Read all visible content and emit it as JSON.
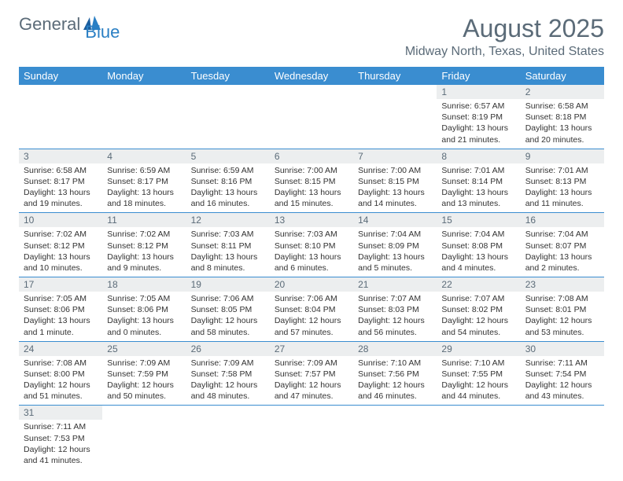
{
  "logo": {
    "text1": "General",
    "text2": "Blue"
  },
  "title": "August 2025",
  "location": "Midway North, Texas, United States",
  "colors": {
    "header_bg": "#3a8dd0",
    "header_text": "#ffffff",
    "daynum_bg": "#eceeef",
    "text_muted": "#5b6b78",
    "border": "#3a8dd0"
  },
  "daynames": [
    "Sunday",
    "Monday",
    "Tuesday",
    "Wednesday",
    "Thursday",
    "Friday",
    "Saturday"
  ],
  "weeks": [
    [
      null,
      null,
      null,
      null,
      null,
      {
        "n": "1",
        "sr": "Sunrise: 6:57 AM",
        "ss": "Sunset: 8:19 PM",
        "dl": "Daylight: 13 hours and 21 minutes."
      },
      {
        "n": "2",
        "sr": "Sunrise: 6:58 AM",
        "ss": "Sunset: 8:18 PM",
        "dl": "Daylight: 13 hours and 20 minutes."
      }
    ],
    [
      {
        "n": "3",
        "sr": "Sunrise: 6:58 AM",
        "ss": "Sunset: 8:17 PM",
        "dl": "Daylight: 13 hours and 19 minutes."
      },
      {
        "n": "4",
        "sr": "Sunrise: 6:59 AM",
        "ss": "Sunset: 8:17 PM",
        "dl": "Daylight: 13 hours and 18 minutes."
      },
      {
        "n": "5",
        "sr": "Sunrise: 6:59 AM",
        "ss": "Sunset: 8:16 PM",
        "dl": "Daylight: 13 hours and 16 minutes."
      },
      {
        "n": "6",
        "sr": "Sunrise: 7:00 AM",
        "ss": "Sunset: 8:15 PM",
        "dl": "Daylight: 13 hours and 15 minutes."
      },
      {
        "n": "7",
        "sr": "Sunrise: 7:00 AM",
        "ss": "Sunset: 8:15 PM",
        "dl": "Daylight: 13 hours and 14 minutes."
      },
      {
        "n": "8",
        "sr": "Sunrise: 7:01 AM",
        "ss": "Sunset: 8:14 PM",
        "dl": "Daylight: 13 hours and 13 minutes."
      },
      {
        "n": "9",
        "sr": "Sunrise: 7:01 AM",
        "ss": "Sunset: 8:13 PM",
        "dl": "Daylight: 13 hours and 11 minutes."
      }
    ],
    [
      {
        "n": "10",
        "sr": "Sunrise: 7:02 AM",
        "ss": "Sunset: 8:12 PM",
        "dl": "Daylight: 13 hours and 10 minutes."
      },
      {
        "n": "11",
        "sr": "Sunrise: 7:02 AM",
        "ss": "Sunset: 8:12 PM",
        "dl": "Daylight: 13 hours and 9 minutes."
      },
      {
        "n": "12",
        "sr": "Sunrise: 7:03 AM",
        "ss": "Sunset: 8:11 PM",
        "dl": "Daylight: 13 hours and 8 minutes."
      },
      {
        "n": "13",
        "sr": "Sunrise: 7:03 AM",
        "ss": "Sunset: 8:10 PM",
        "dl": "Daylight: 13 hours and 6 minutes."
      },
      {
        "n": "14",
        "sr": "Sunrise: 7:04 AM",
        "ss": "Sunset: 8:09 PM",
        "dl": "Daylight: 13 hours and 5 minutes."
      },
      {
        "n": "15",
        "sr": "Sunrise: 7:04 AM",
        "ss": "Sunset: 8:08 PM",
        "dl": "Daylight: 13 hours and 4 minutes."
      },
      {
        "n": "16",
        "sr": "Sunrise: 7:04 AM",
        "ss": "Sunset: 8:07 PM",
        "dl": "Daylight: 13 hours and 2 minutes."
      }
    ],
    [
      {
        "n": "17",
        "sr": "Sunrise: 7:05 AM",
        "ss": "Sunset: 8:06 PM",
        "dl": "Daylight: 13 hours and 1 minute."
      },
      {
        "n": "18",
        "sr": "Sunrise: 7:05 AM",
        "ss": "Sunset: 8:06 PM",
        "dl": "Daylight: 13 hours and 0 minutes."
      },
      {
        "n": "19",
        "sr": "Sunrise: 7:06 AM",
        "ss": "Sunset: 8:05 PM",
        "dl": "Daylight: 12 hours and 58 minutes."
      },
      {
        "n": "20",
        "sr": "Sunrise: 7:06 AM",
        "ss": "Sunset: 8:04 PM",
        "dl": "Daylight: 12 hours and 57 minutes."
      },
      {
        "n": "21",
        "sr": "Sunrise: 7:07 AM",
        "ss": "Sunset: 8:03 PM",
        "dl": "Daylight: 12 hours and 56 minutes."
      },
      {
        "n": "22",
        "sr": "Sunrise: 7:07 AM",
        "ss": "Sunset: 8:02 PM",
        "dl": "Daylight: 12 hours and 54 minutes."
      },
      {
        "n": "23",
        "sr": "Sunrise: 7:08 AM",
        "ss": "Sunset: 8:01 PM",
        "dl": "Daylight: 12 hours and 53 minutes."
      }
    ],
    [
      {
        "n": "24",
        "sr": "Sunrise: 7:08 AM",
        "ss": "Sunset: 8:00 PM",
        "dl": "Daylight: 12 hours and 51 minutes."
      },
      {
        "n": "25",
        "sr": "Sunrise: 7:09 AM",
        "ss": "Sunset: 7:59 PM",
        "dl": "Daylight: 12 hours and 50 minutes."
      },
      {
        "n": "26",
        "sr": "Sunrise: 7:09 AM",
        "ss": "Sunset: 7:58 PM",
        "dl": "Daylight: 12 hours and 48 minutes."
      },
      {
        "n": "27",
        "sr": "Sunrise: 7:09 AM",
        "ss": "Sunset: 7:57 PM",
        "dl": "Daylight: 12 hours and 47 minutes."
      },
      {
        "n": "28",
        "sr": "Sunrise: 7:10 AM",
        "ss": "Sunset: 7:56 PM",
        "dl": "Daylight: 12 hours and 46 minutes."
      },
      {
        "n": "29",
        "sr": "Sunrise: 7:10 AM",
        "ss": "Sunset: 7:55 PM",
        "dl": "Daylight: 12 hours and 44 minutes."
      },
      {
        "n": "30",
        "sr": "Sunrise: 7:11 AM",
        "ss": "Sunset: 7:54 PM",
        "dl": "Daylight: 12 hours and 43 minutes."
      }
    ],
    [
      {
        "n": "31",
        "sr": "Sunrise: 7:11 AM",
        "ss": "Sunset: 7:53 PM",
        "dl": "Daylight: 12 hours and 41 minutes."
      },
      null,
      null,
      null,
      null,
      null,
      null
    ]
  ]
}
